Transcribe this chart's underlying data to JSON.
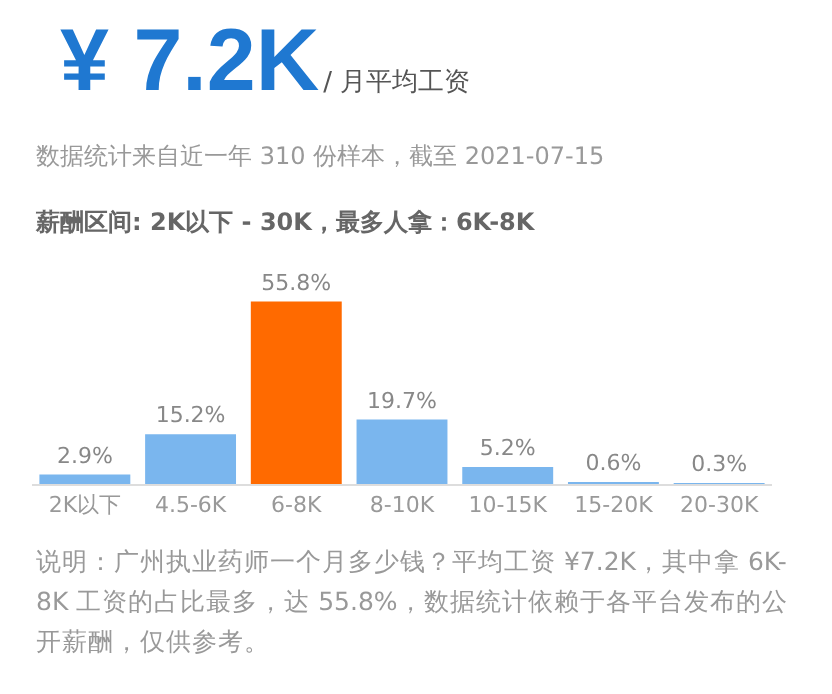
{
  "chart_data": {
    "type": "bar",
    "title": "¥ 7.2K",
    "subtitle": "/ 月平均工资",
    "annotations": [
      "数据统计来自近一年 310 份样本，截至 2021-07-15",
      "薪酬区间: 2K以下 - 30K，最多人拿：6K-8K",
      "说明：广州执业药师一个月多少钱？平均工资 ¥7.2K，其中拿 6K-8K 工资的占比最多，达 55.8%，数据统计依赖于各平台发布的公开薪酬，仅供参考。"
    ],
    "categories": [
      "2K以下",
      "4.5-6K",
      "6-8K",
      "8-10K",
      "10-15K",
      "15-20K",
      "20-30K"
    ],
    "values": [
      2.9,
      15.2,
      55.8,
      19.7,
      5.2,
      0.6,
      0.3
    ],
    "colors": [
      "#7ab6ee",
      "#7ab6ee",
      "#ff6a00",
      "#7ab6ee",
      "#7ab6ee",
      "#7ab6ee",
      "#7ab6ee"
    ],
    "value_labels": [
      "2.9%",
      "15.2%",
      "55.8%",
      "19.7%",
      "5.2%",
      "0.6%",
      "0.3%"
    ],
    "grid": false,
    "legend": false
  }
}
